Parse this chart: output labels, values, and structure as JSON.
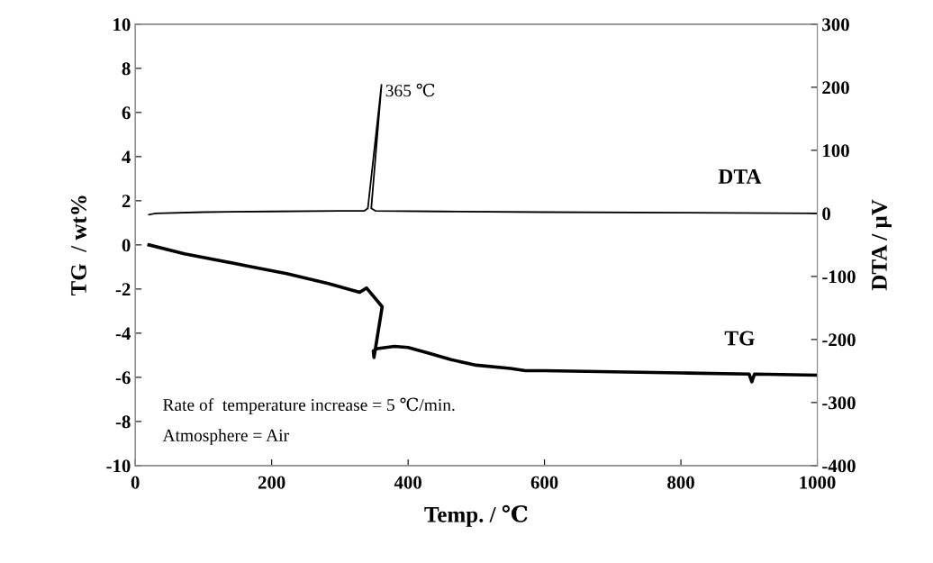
{
  "chart_data": {
    "type": "line",
    "xlabel": "Temp. / ℃",
    "ylabel": "TG  / wt%",
    "y2label": "DTA / µV",
    "xlim": [
      0,
      1000
    ],
    "xticks": [
      0,
      200,
      400,
      600,
      800,
      1000
    ],
    "ylim": [
      -10,
      10
    ],
    "yticks": [
      -10,
      -8,
      -6,
      -4,
      -2,
      0,
      2,
      4,
      6,
      8,
      10
    ],
    "y2lim": [
      -400,
      300
    ],
    "y2ticks": [
      -400,
      -300,
      -200,
      -100,
      0,
      100,
      200,
      300
    ],
    "grid": false,
    "legend": false,
    "marker": "none",
    "line_style": "solid",
    "series": [
      {
        "name": "DTA",
        "color": "#000000",
        "axis": "y2",
        "x": [
          20,
          30,
          100,
          200,
          300,
          336,
          341,
          361,
          346,
          352,
          450,
          600,
          800,
          1000
        ],
        "values": [
          -2,
          0,
          2,
          3,
          4,
          4,
          8,
          204,
          8,
          4,
          3,
          2,
          1,
          0
        ]
      },
      {
        "name": "TG",
        "color": "#000000",
        "x": [
          20,
          72,
          164,
          222,
          283,
          329,
          339,
          362,
          350,
          349,
          355,
          380,
          400,
          430,
          463,
          500,
          550,
          572,
          600,
          700,
          800,
          900,
          904,
          908,
          1000
        ],
        "values": [
          0,
          -0.4,
          -0.95,
          -1.3,
          -1.75,
          -2.15,
          -1.95,
          -2.8,
          -5.1,
          -4.8,
          -4.7,
          -4.6,
          -4.65,
          -4.9,
          -5.2,
          -5.45,
          -5.6,
          -5.7,
          -5.7,
          -5.75,
          -5.8,
          -5.85,
          -6.2,
          -5.85,
          -5.9
        ]
      }
    ],
    "annotations": [
      "365 ℃",
      "Rate of  temperature increase = 5 ℃/min.",
      "Atmosphere = Air"
    ]
  }
}
